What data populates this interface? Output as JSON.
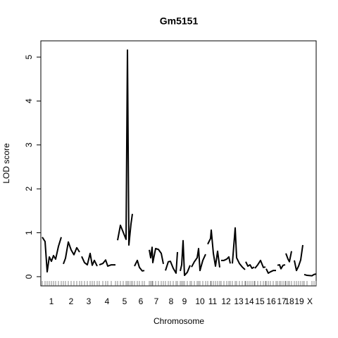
{
  "chart_data": {
    "type": "line",
    "title": "Gm5151",
    "x_label": "Chromosome",
    "y_label": "LOD score",
    "x": [
      0,
      4,
      7,
      10,
      13,
      16,
      19,
      23,
      27,
      null,
      30,
      33,
      37,
      41,
      45,
      49,
      53,
      null,
      56,
      60,
      64,
      68,
      71,
      74,
      78,
      null,
      81,
      86,
      90,
      93,
      98,
      104,
      null,
      107,
      111,
      115,
      119,
      121,
      123,
      126,
      128,
      null,
      131,
      135,
      138,
      142,
      145,
      null,
      152,
      154,
      156,
      157,
      161,
      165,
      169,
      172,
      null,
      175,
      179,
      182,
      186,
      190,
      192,
      null,
      196,
      198,
      200,
      202,
      206,
      210,
      null,
      212,
      216,
      220,
      222,
      224,
      228,
      232,
      null,
      235,
      239,
      240,
      243,
      246,
      249,
      252,
      null,
      254,
      258,
      262,
      265,
      267,
      null,
      270,
      274,
      276,
      280,
      284,
      288,
      null,
      289,
      292,
      295,
      298,
      301,
      null,
      302,
      306,
      310,
      314,
      317,
      null,
      318,
      321,
      324,
      328,
      332,
      null,
      334,
      337,
      339,
      342,
      345,
      null,
      346,
      349,
      351,
      354,
      null,
      358,
      361,
      364,
      367,
      370,
      null,
      372,
      376,
      383,
      386,
      389
    ],
    "series": [
      {
        "color": "#000000",
        "values": [
          0.9,
          0.8,
          0.11,
          0.45,
          0.35,
          0.48,
          0.4,
          0.69,
          0.9,
          null,
          0.29,
          0.42,
          0.79,
          0.61,
          0.5,
          0.66,
          0.56,
          null,
          0.46,
          0.32,
          0.27,
          0.53,
          0.26,
          0.37,
          0.24,
          null,
          0.27,
          0.3,
          0.38,
          0.24,
          0.27,
          0.27,
          null,
          0.83,
          1.17,
          1.01,
          0.85,
          5.16,
          0.72,
          1.2,
          1.43,
          null,
          0.24,
          0.37,
          0.21,
          0.13,
          0.14,
          null,
          0.61,
          0.43,
          0.67,
          0.32,
          0.64,
          0.62,
          0.53,
          0.29,
          null,
          0.14,
          0.34,
          0.35,
          0.19,
          0.08,
          0.56,
          null,
          0.13,
          0.27,
          0.82,
          0.03,
          0.1,
          0.26,
          null,
          0.22,
          0.34,
          0.43,
          0.64,
          0.14,
          0.37,
          0.51,
          null,
          0.74,
          0.87,
          1.06,
          0.53,
          0.24,
          0.58,
          0.21,
          null,
          0.37,
          0.37,
          0.4,
          0.45,
          0.3,
          null,
          0.3,
          1.11,
          0.43,
          0.3,
          0.22,
          0.16,
          null,
          0.34,
          0.24,
          0.27,
          0.19,
          0.22,
          null,
          0.19,
          0.27,
          0.37,
          0.21,
          0.22,
          null,
          0.18,
          0.08,
          0.11,
          0.14,
          0.14,
          null,
          0.26,
          0.27,
          0.18,
          0.26,
          0.27,
          null,
          0.53,
          0.4,
          0.34,
          0.58,
          null,
          0.37,
          0.14,
          0.24,
          0.38,
          0.72,
          null,
          0.05,
          0.03,
          0.02,
          0.05,
          0.06
        ]
      }
    ],
    "xlim": [
      -2,
      389
    ],
    "xticks": [
      {
        "value": 13,
        "label": "1"
      },
      {
        "value": 41,
        "label": "2"
      },
      {
        "value": 66,
        "label": "3"
      },
      {
        "value": 92,
        "label": "4"
      },
      {
        "value": 117,
        "label": "5"
      },
      {
        "value": 140,
        "label": "6"
      },
      {
        "value": 162,
        "label": "7"
      },
      {
        "value": 183,
        "label": "8"
      },
      {
        "value": 202,
        "label": "9"
      },
      {
        "value": 224,
        "label": "10"
      },
      {
        "value": 242,
        "label": "11"
      },
      {
        "value": 261,
        "label": "12"
      },
      {
        "value": 279,
        "label": "13"
      },
      {
        "value": 294,
        "label": "14"
      },
      {
        "value": 309,
        "label": "15"
      },
      {
        "value": 325,
        "label": "16"
      },
      {
        "value": 340,
        "label": "17"
      },
      {
        "value": 351,
        "label": "18"
      },
      {
        "value": 365,
        "label": "19"
      },
      {
        "value": 380,
        "label": "X"
      }
    ],
    "ylim": [
      -0.21,
      5.37
    ],
    "yticks": [
      0,
      1,
      2,
      3,
      4,
      5
    ],
    "grid": false,
    "rug": true
  }
}
